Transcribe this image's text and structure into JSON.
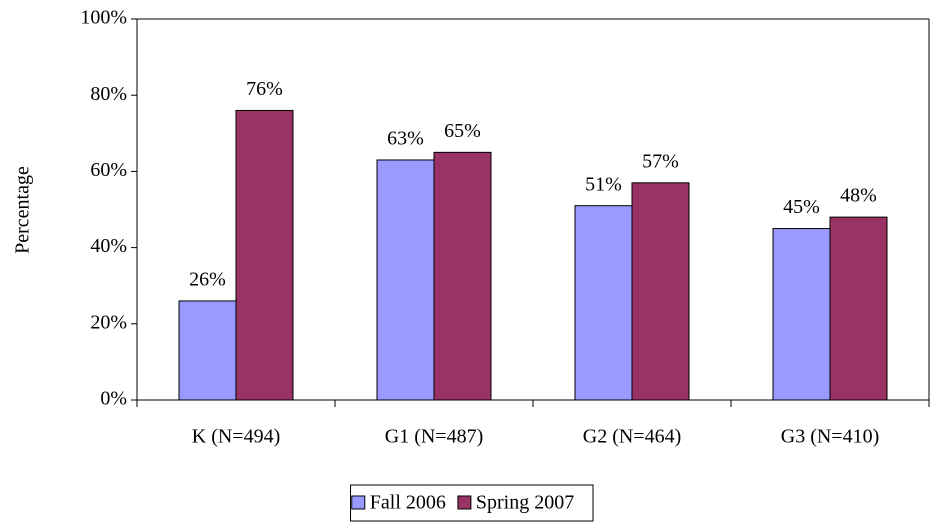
{
  "chart_data": {
    "type": "bar",
    "y_label": "Percentage",
    "categories": [
      "K (N=494)",
      "G1 (N=487)",
      "G2 (N=464)",
      "G3 (N=410)"
    ],
    "series": [
      {
        "name": "Fall 2006",
        "color": "#9999ff",
        "values": [
          26,
          63,
          51,
          45
        ],
        "value_labels": [
          "26%",
          "63%",
          "51%",
          "45%"
        ]
      },
      {
        "name": "Spring 2007",
        "color": "#993366",
        "values": [
          76,
          65,
          57,
          48
        ],
        "value_labels": [
          "76%",
          "65%",
          "57%",
          "48%"
        ]
      }
    ],
    "ylim": [
      0,
      100
    ],
    "yticks": [
      {
        "value": 0,
        "label": "0%"
      },
      {
        "value": 20,
        "label": "20%"
      },
      {
        "value": 40,
        "label": "40%"
      },
      {
        "value": 60,
        "label": "60%"
      },
      {
        "value": 80,
        "label": "80%"
      },
      {
        "value": 100,
        "label": "100%"
      }
    ],
    "grid": false,
    "legend": "bottom"
  }
}
